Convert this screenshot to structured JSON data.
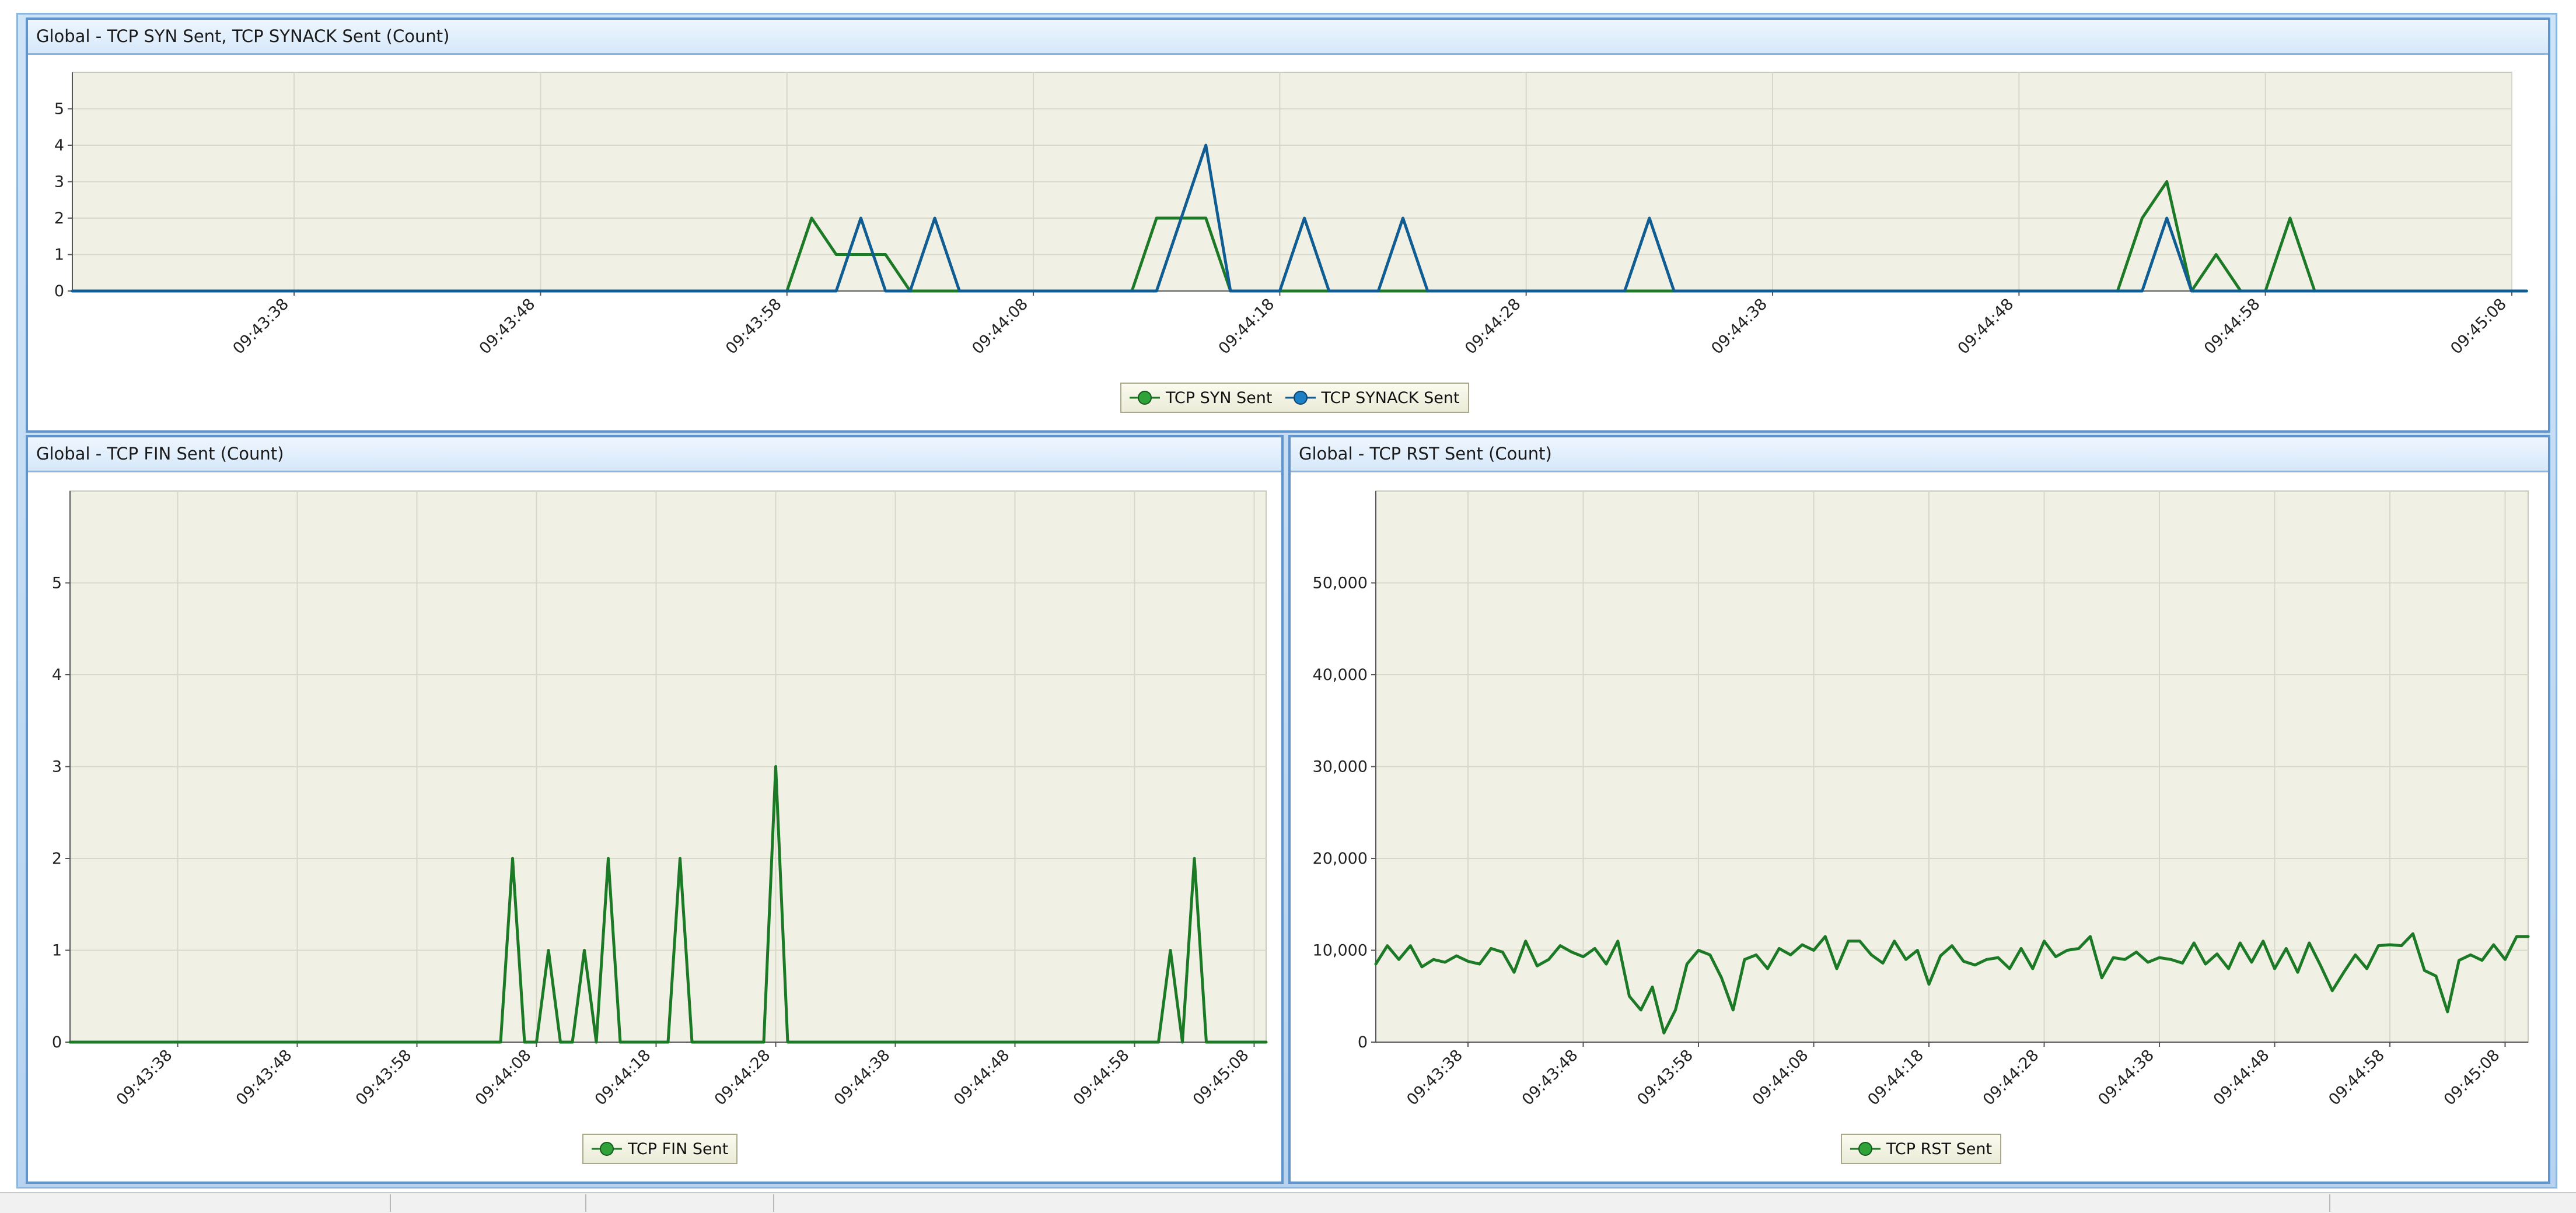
{
  "colors": {
    "syn": "#1c7a26",
    "synack": "#0f5d93",
    "fin": "#1c7a26",
    "rst": "#1c7a26",
    "plot_bg": "#f1f0e4",
    "grid": "#d7d7ca",
    "axis": "#555555",
    "marker_fill": "#2fa339"
  },
  "panels": {
    "syn": {
      "title": "Global - TCP SYN Sent, TCP SYNACK Sent (Count)",
      "legend": [
        "TCP SYN Sent",
        "TCP SYNACK Sent"
      ]
    },
    "fin": {
      "title": "Global - TCP FIN Sent (Count)",
      "legend": [
        "TCP FIN Sent"
      ]
    },
    "rst": {
      "title": "Global - TCP RST Sent (Count)",
      "legend": [
        "TCP RST Sent"
      ]
    }
  },
  "chart_data": [
    {
      "type": "line",
      "title": "Global - TCP SYN Sent, TCP SYNACK Sent (Count)",
      "x_unit": "seconds after 09:43:29",
      "xlim": [
        0,
        99
      ],
      "ylim": [
        0,
        6
      ],
      "yticks": [
        0,
        1,
        2,
        3,
        4,
        5
      ],
      "xticks": [
        {
          "x": 9,
          "label": "09:43:38"
        },
        {
          "x": 19,
          "label": "09:43:48"
        },
        {
          "x": 29,
          "label": "09:43:58"
        },
        {
          "x": 39,
          "label": "09:44:08"
        },
        {
          "x": 49,
          "label": "09:44:18"
        },
        {
          "x": 59,
          "label": "09:44:28"
        },
        {
          "x": 69,
          "label": "09:44:38"
        },
        {
          "x": 79,
          "label": "09:44:48"
        },
        {
          "x": 89,
          "label": "09:44:58"
        },
        {
          "x": 99,
          "label": "09:45:08"
        }
      ],
      "grid": true,
      "legend_position": "bottom",
      "series": [
        {
          "name": "TCP SYN Sent",
          "color": "#1c7a26",
          "points": [
            [
              0,
              0
            ],
            [
              29,
              0
            ],
            [
              30,
              2
            ],
            [
              31,
              1
            ],
            [
              32,
              1
            ],
            [
              33,
              1
            ],
            [
              34,
              0
            ],
            [
              43,
              0
            ],
            [
              44,
              2
            ],
            [
              45,
              2
            ],
            [
              46,
              2
            ],
            [
              47,
              0
            ],
            [
              83,
              0
            ],
            [
              84,
              2
            ],
            [
              85,
              3
            ],
            [
              86,
              0
            ],
            [
              87,
              1
            ],
            [
              88,
              0
            ],
            [
              89,
              0
            ],
            [
              90,
              2
            ],
            [
              91,
              0
            ],
            [
              99.6,
              0
            ]
          ]
        },
        {
          "name": "TCP SYNACK Sent",
          "color": "#0f5d93",
          "points": [
            [
              0,
              0
            ],
            [
              31,
              0
            ],
            [
              32,
              2
            ],
            [
              33,
              0
            ],
            [
              34,
              0
            ],
            [
              35,
              2
            ],
            [
              36,
              0
            ],
            [
              44,
              0
            ],
            [
              45,
              2
            ],
            [
              46,
              4
            ],
            [
              47,
              0
            ],
            [
              49,
              0
            ],
            [
              50,
              2
            ],
            [
              51,
              0
            ],
            [
              53,
              0
            ],
            [
              54,
              2
            ],
            [
              55,
              0
            ],
            [
              63,
              0
            ],
            [
              64,
              2
            ],
            [
              65,
              0
            ],
            [
              84,
              0
            ],
            [
              85,
              2
            ],
            [
              86,
              0
            ],
            [
              99.6,
              0
            ]
          ]
        }
      ]
    },
    {
      "type": "line",
      "title": "Global - TCP FIN Sent (Count)",
      "x_unit": "seconds after 09:43:29",
      "xlim": [
        0,
        100
      ],
      "ylim": [
        0,
        6
      ],
      "yticks": [
        0,
        1,
        2,
        3,
        4,
        5
      ],
      "xticks": [
        {
          "x": 9,
          "label": "09:43:38"
        },
        {
          "x": 19,
          "label": "09:43:48"
        },
        {
          "x": 29,
          "label": "09:43:58"
        },
        {
          "x": 39,
          "label": "09:44:08"
        },
        {
          "x": 49,
          "label": "09:44:18"
        },
        {
          "x": 59,
          "label": "09:44:28"
        },
        {
          "x": 69,
          "label": "09:44:38"
        },
        {
          "x": 79,
          "label": "09:44:48"
        },
        {
          "x": 89,
          "label": "09:44:58"
        },
        {
          "x": 99,
          "label": "09:45:08"
        }
      ],
      "grid": true,
      "legend_position": "bottom",
      "series": [
        {
          "name": "TCP FIN Sent",
          "color": "#1c7a26",
          "points": [
            [
              0,
              0
            ],
            [
              36,
              0
            ],
            [
              37,
              2
            ],
            [
              38,
              0
            ],
            [
              39,
              0
            ],
            [
              40,
              1
            ],
            [
              41,
              0
            ],
            [
              42,
              0
            ],
            [
              43,
              1
            ],
            [
              44,
              0
            ],
            [
              45,
              2
            ],
            [
              46,
              0
            ],
            [
              50,
              0
            ],
            [
              51,
              2
            ],
            [
              52,
              0
            ],
            [
              58,
              0
            ],
            [
              59,
              3
            ],
            [
              60,
              0
            ],
            [
              91,
              0
            ],
            [
              92,
              1
            ],
            [
              93,
              0
            ],
            [
              94,
              2
            ],
            [
              95,
              0
            ],
            [
              100,
              0
            ]
          ]
        }
      ]
    },
    {
      "type": "line",
      "title": "Global - TCP RST Sent (Count)",
      "x_unit": "seconds after 09:43:30",
      "xlim": [
        0,
        100
      ],
      "ylim": [
        0,
        60000
      ],
      "yticks": [
        0,
        10000,
        20000,
        30000,
        40000,
        50000
      ],
      "ytick_labels": [
        "0",
        "10,000",
        "20,000",
        "30,000",
        "40,000",
        "50,000"
      ],
      "xticks": [
        {
          "x": 8,
          "label": "09:43:38"
        },
        {
          "x": 18,
          "label": "09:43:48"
        },
        {
          "x": 28,
          "label": "09:43:58"
        },
        {
          "x": 38,
          "label": "09:44:08"
        },
        {
          "x": 48,
          "label": "09:44:18"
        },
        {
          "x": 58,
          "label": "09:44:28"
        },
        {
          "x": 68,
          "label": "09:44:38"
        },
        {
          "x": 78,
          "label": "09:44:48"
        },
        {
          "x": 88,
          "label": "09:44:58"
        },
        {
          "x": 98,
          "label": "09:45:08"
        }
      ],
      "grid": true,
      "legend_position": "bottom",
      "series": [
        {
          "name": "TCP RST Sent",
          "color": "#1c7a26",
          "x": [
            0,
            1,
            2,
            3,
            4,
            5,
            6,
            7,
            8,
            9,
            10,
            11,
            12,
            13,
            14,
            15,
            16,
            17,
            18,
            19,
            20,
            21,
            22,
            23,
            24,
            25,
            26,
            27,
            28,
            29,
            30,
            31,
            32,
            33,
            34,
            35,
            36,
            37,
            38,
            39,
            40,
            41,
            42,
            43,
            44,
            45,
            46,
            47,
            48,
            49,
            50,
            51,
            52,
            53,
            54,
            55,
            56,
            57,
            58,
            59,
            60,
            61,
            62,
            63,
            64,
            65,
            66,
            67,
            68,
            69,
            70,
            71,
            72,
            73,
            74,
            75,
            76,
            77,
            78,
            79,
            80,
            81,
            82,
            83,
            84,
            85,
            86,
            87,
            88,
            89,
            90,
            91,
            92,
            93,
            94,
            95,
            96,
            97,
            98,
            99,
            100
          ],
          "y": [
            8500,
            10500,
            9000,
            10500,
            8200,
            9000,
            8700,
            9400,
            8800,
            8500,
            10200,
            9800,
            7600,
            11000,
            8300,
            9000,
            10500,
            9800,
            9300,
            10200,
            8500,
            11000,
            5000,
            3500,
            6000,
            1000,
            3500,
            8500,
            10000,
            9500,
            7000,
            3500,
            9000,
            9500,
            8000,
            10200,
            9500,
            10600,
            10000,
            11500,
            8000,
            11000,
            11000,
            9500,
            8600,
            11000,
            9000,
            10000,
            6300,
            9400,
            10500,
            8800,
            8400,
            9000,
            9200,
            8000,
            10200,
            8000,
            11000,
            9300,
            10000,
            10200,
            11500,
            7000,
            9200,
            9000,
            9800,
            8700,
            9200,
            9000,
            8600,
            10800,
            8500,
            9600,
            8000,
            10800,
            8700,
            11000,
            8000,
            10200,
            7600,
            10800,
            8300,
            5600,
            7600,
            9500,
            8000,
            10500,
            10600,
            10500,
            11800,
            7800,
            7200,
            3300,
            8900,
            9500,
            8900,
            10600,
            9000,
            11500,
            11500
          ]
        }
      ]
    }
  ]
}
